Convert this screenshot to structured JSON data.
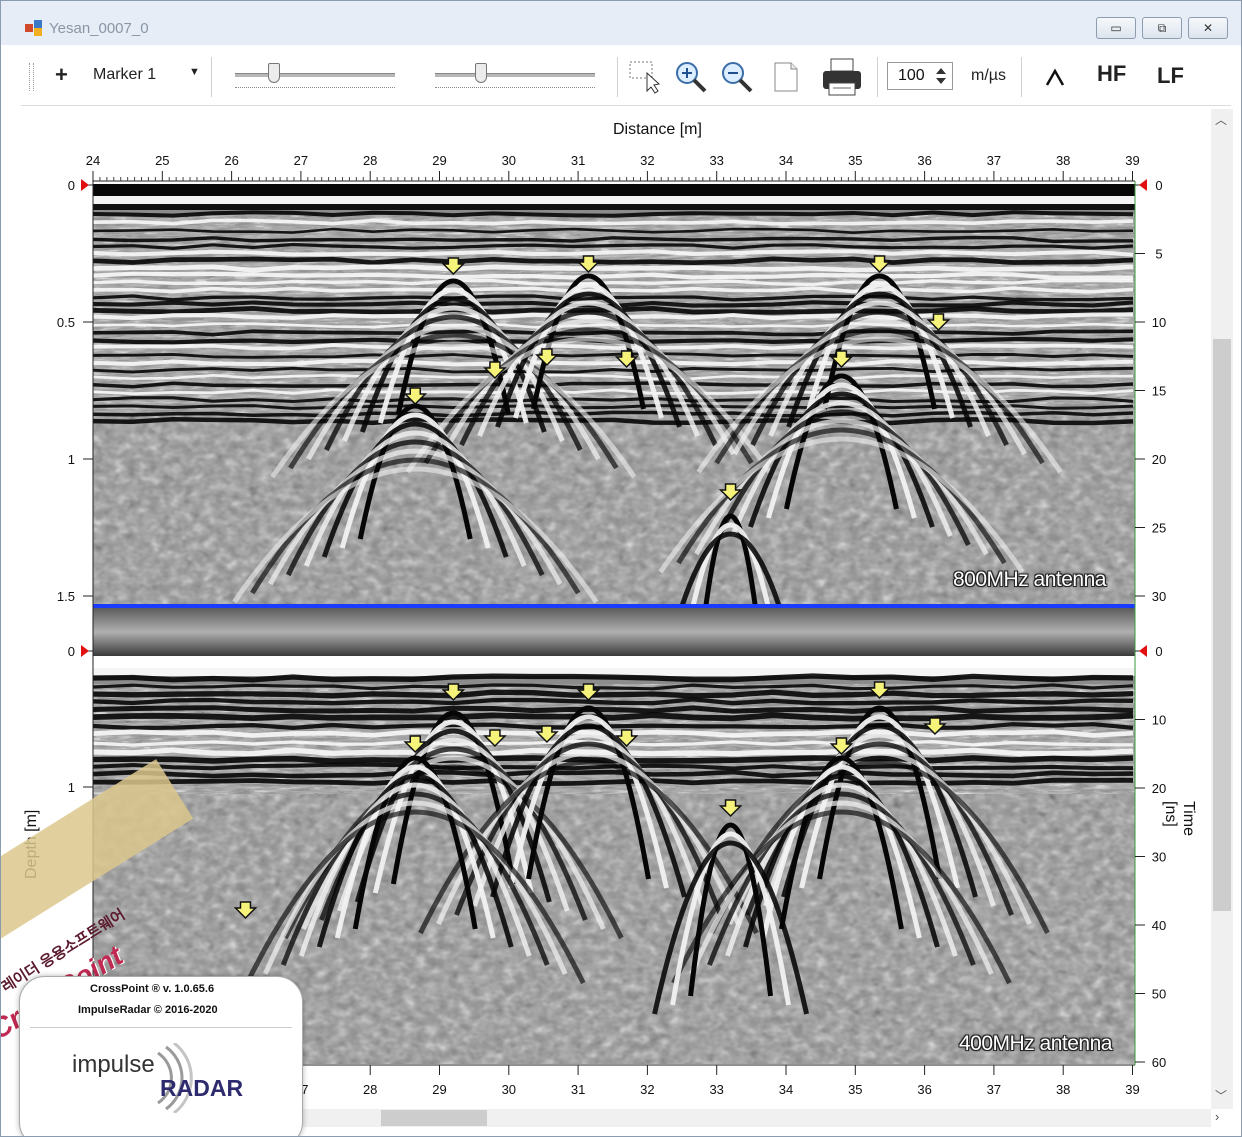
{
  "window": {
    "title": "Yesan_0007_0",
    "controls": {
      "minimize": "▭",
      "maximize": "⧉",
      "close": "✕"
    }
  },
  "toolbar": {
    "add_marker_label": "+",
    "marker_select_value": "Marker 1",
    "velocity_value": "100",
    "velocity_unit": "m/µs",
    "hf_label": "HF",
    "lf_label": "LF",
    "slider1_level": 0.22,
    "slider2_level": 0.27,
    "icons": [
      "select-cursor-icon",
      "zoom-in-icon",
      "zoom-out-icon",
      "page-icon",
      "printer-icon",
      "peak-icon"
    ]
  },
  "plot": {
    "top_axis_title": "Distance [m]",
    "left_axis_title": "Depth [m]",
    "right_axis_title": "Time [ns]",
    "distance_ticks": [
      "24",
      "25",
      "26",
      "27",
      "28",
      "29",
      "30",
      "31",
      "32",
      "33",
      "34",
      "35",
      "36",
      "37",
      "38",
      "39"
    ],
    "bottom_ticks_visible": [
      "7",
      "28",
      "29",
      "30",
      "31",
      "32",
      "33",
      "34",
      "35",
      "36",
      "37",
      "38",
      "39"
    ],
    "upper_panel": {
      "antenna_label": "800MHz antenna",
      "depth_ticks": [
        "0",
        "0.5",
        "1",
        "1.5"
      ],
      "time_ticks": [
        "0",
        "5",
        "10",
        "15",
        "20",
        "25",
        "30"
      ]
    },
    "lower_panel": {
      "antenna_label": "400MHz antenna",
      "depth_ticks": [
        "0",
        "1"
      ],
      "time_ticks": [
        "0",
        "10",
        "20",
        "30",
        "40",
        "50",
        "60"
      ]
    },
    "marker_color": "#f5f37a",
    "separator_color": "#1a3cff"
  },
  "branding": {
    "product": "CrossPoint ® v. 1.0.65.6",
    "copyright": "ImpulseRadar © 2016-2020",
    "logo_word_1": "impulse",
    "logo_word_2": "RADAR",
    "sticker_korean": "레이더 응용소프트웨어",
    "sticker_brand": "CrossPoint"
  }
}
